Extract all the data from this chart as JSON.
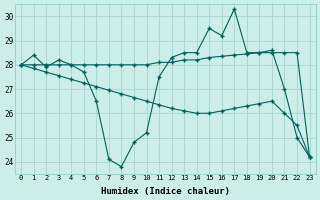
{
  "xlabel": "Humidex (Indice chaleur)",
  "background_color": "#cceee8",
  "grid_color": "#aad8d2",
  "line_color": "#006060",
  "xlim": [
    -0.5,
    23.5
  ],
  "ylim": [
    23.5,
    30.5
  ],
  "yticks": [
    24,
    25,
    26,
    27,
    28,
    29,
    30
  ],
  "xticks": [
    0,
    1,
    2,
    3,
    4,
    5,
    6,
    7,
    8,
    9,
    10,
    11,
    12,
    13,
    14,
    15,
    16,
    17,
    18,
    19,
    20,
    21,
    22,
    23
  ],
  "line1": [
    28.0,
    28.4,
    27.9,
    28.2,
    28.0,
    27.7,
    26.5,
    24.1,
    23.8,
    24.8,
    25.2,
    27.5,
    28.3,
    28.5,
    28.5,
    29.5,
    29.2,
    30.3,
    28.5,
    28.5,
    28.6,
    27.0,
    25.0,
    24.2
  ],
  "line2": [
    28.0,
    28.0,
    28.0,
    28.0,
    28.0,
    28.0,
    28.0,
    28.0,
    28.0,
    28.0,
    28.0,
    28.1,
    28.1,
    28.2,
    28.2,
    28.3,
    28.35,
    28.4,
    28.45,
    28.5,
    28.5,
    28.5,
    28.5,
    24.2
  ],
  "line3": [
    28.0,
    27.85,
    27.7,
    27.55,
    27.4,
    27.25,
    27.1,
    26.95,
    26.8,
    26.65,
    26.5,
    26.35,
    26.2,
    26.1,
    26.0,
    26.0,
    26.1,
    26.2,
    26.3,
    26.4,
    26.5,
    26.0,
    25.5,
    24.2
  ]
}
